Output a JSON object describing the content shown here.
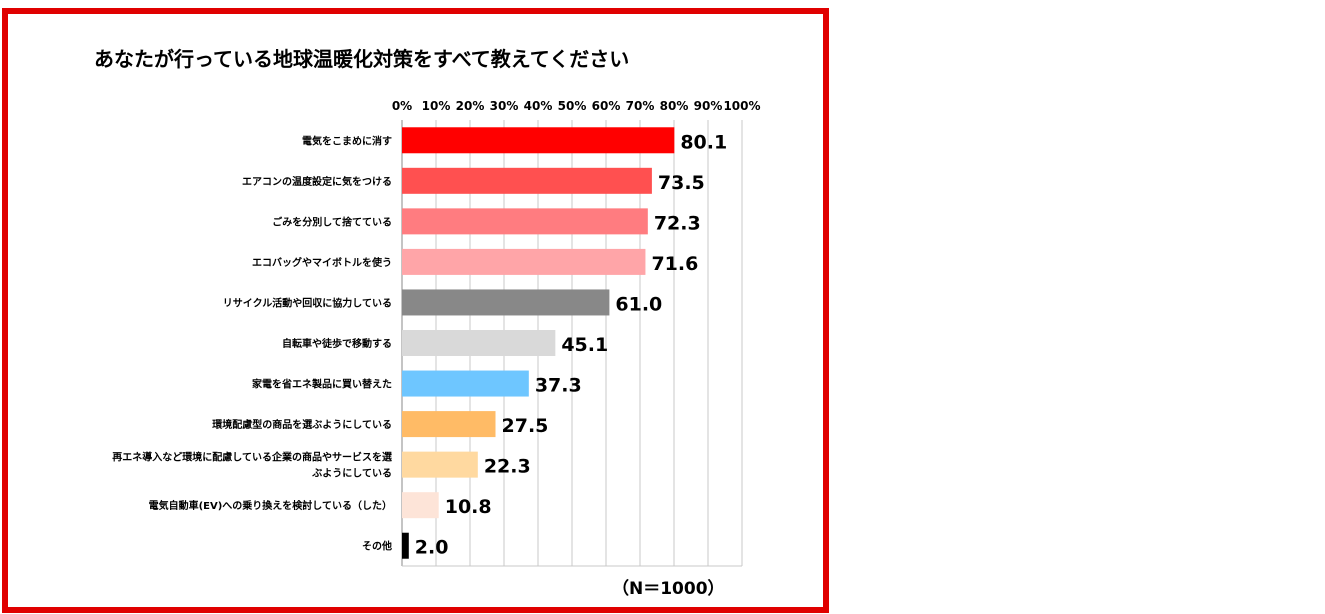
{
  "chart_data": {
    "type": "bar",
    "orientation": "horizontal",
    "title": "あなたが行っている地球温暖化対策をすべて教えてください",
    "x_ticks": [
      "0%",
      "10%",
      "20%",
      "30%",
      "40%",
      "50%",
      "60%",
      "70%",
      "80%",
      "90%",
      "100%"
    ],
    "xlim": [
      0,
      100
    ],
    "grid": "vertical",
    "categories": [
      [
        "電気をこまめに消す"
      ],
      [
        "エアコンの温度設定に気をつける"
      ],
      [
        "ごみを分別して捨てている"
      ],
      [
        "エコバッグやマイボトルを使う"
      ],
      [
        "リサイクル活動や回収に協力している"
      ],
      [
        "自転車や徒歩で移動する"
      ],
      [
        "家電を省エネ製品に買い替えた"
      ],
      [
        "環境配慮型の商品を選ぶようにしている"
      ],
      [
        "再エネ導入など環境に配慮している企業の商品やサービスを選",
        "ぶようにしている"
      ],
      [
        "電気自動車(EV)への乗り換えを検討している（した）"
      ],
      [
        "その他"
      ]
    ],
    "values": [
      80.1,
      73.5,
      72.3,
      71.6,
      61.0,
      45.1,
      37.3,
      27.5,
      22.3,
      10.8,
      2.0
    ],
    "value_labels": [
      "80.1",
      "73.5",
      "72.3",
      "71.6",
      "61.0",
      "45.1",
      "37.3",
      "27.5",
      "22.3",
      "10.8",
      "2.0"
    ],
    "bar_colors": [
      "#ff0000",
      "#ff5050",
      "#ff7c80",
      "#ffa5a8",
      "#888888",
      "#d9d9d9",
      "#6ec6ff",
      "#ffbb66",
      "#ffd9a0",
      "#fde4d8",
      "#000000"
    ],
    "note": "（N＝1000）"
  },
  "colors": {
    "frame": "#e00000",
    "grid": "#c8c8c8",
    "axis": "#888888"
  }
}
